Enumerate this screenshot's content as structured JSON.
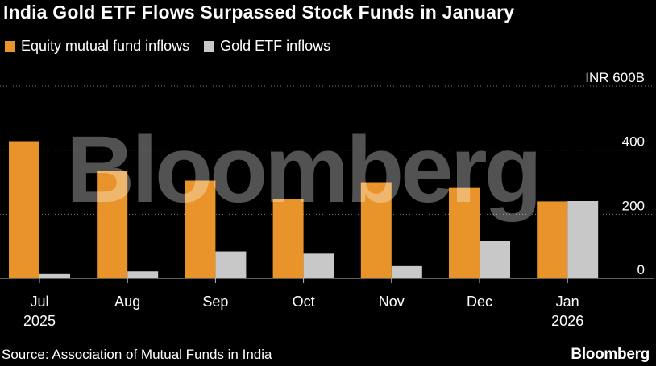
{
  "title": "India Gold ETF Flows Surpassed Stock Funds in January",
  "source": "Source: Association of Mutual Funds in India",
  "logo": "Bloomberg",
  "watermark": "Bloomberg",
  "colors": {
    "background": "#000000",
    "equity": "#E8942A",
    "gold": "#C8C8C8",
    "grid": "#7a7a7a"
  },
  "chart_data": {
    "type": "bar",
    "categories": [
      "Jul\n2025",
      "Aug",
      "Sep",
      "Oct",
      "Nov",
      "Dec",
      "Jan\n2026"
    ],
    "series": [
      {
        "name": "Equity mutual fund inflows",
        "values": [
          428,
          335,
          305,
          246,
          300,
          282,
          240
        ]
      },
      {
        "name": "Gold ETF inflows",
        "values": [
          13,
          22,
          84,
          77,
          38,
          117,
          241
        ]
      }
    ],
    "yticks": [
      0,
      200,
      400,
      600
    ],
    "ytick_labels": [
      "0",
      "200",
      "400",
      "INR 600B"
    ],
    "ylim": [
      0,
      600
    ],
    "grid": true,
    "legend_position": "top-left"
  }
}
